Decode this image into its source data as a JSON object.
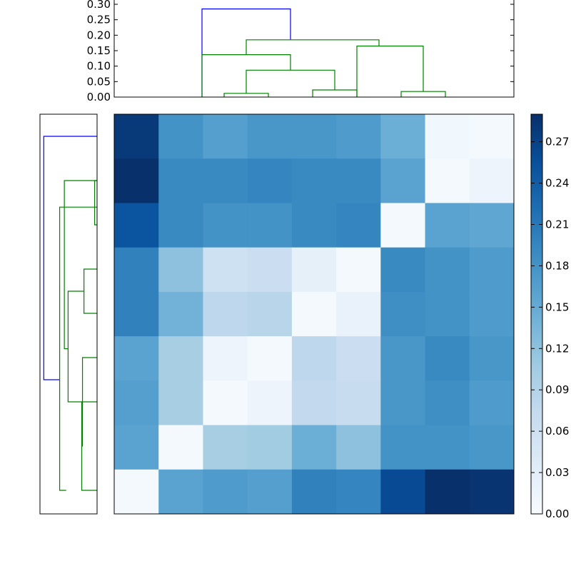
{
  "chart_data": [
    {
      "type": "dendrogram",
      "orientation": "top",
      "ylim": [
        0,
        0.3
      ],
      "yticks": [
        "0.00",
        "0.05",
        "0.10",
        "0.15",
        "0.20",
        "0.25",
        "0.30"
      ],
      "colors": {
        "root": "#0000ff",
        "cluster": "#008000"
      },
      "links": [
        {
          "xs": [
            1.5,
            1.5,
            3.5,
            3.5
          ],
          "ys": [
            0,
            0.285,
            0.285,
            0.185
          ],
          "color": "root"
        },
        {
          "xs": [
            2.5,
            2.5,
            5.5,
            5.5
          ],
          "ys": [
            0.137,
            0.185,
            0.185,
            0.165
          ],
          "color": "cluster"
        },
        {
          "xs": [
            5,
            5,
            6.5,
            6.5
          ],
          "ys": [
            0,
            0.165,
            0.165,
            0.018
          ],
          "color": "cluster"
        },
        {
          "xs": [
            1.5,
            1.5,
            3.5,
            3.5
          ],
          "ys": [
            0,
            0.137,
            0.137,
            0.087
          ],
          "color": "cluster"
        },
        {
          "xs": [
            2.5,
            2.5,
            4.5,
            4.5
          ],
          "ys": [
            0.012,
            0.087,
            0.087,
            0.023
          ],
          "color": "cluster"
        },
        {
          "xs": [
            2,
            2,
            3,
            3
          ],
          "ys": [
            0,
            0.012,
            0.012,
            0
          ],
          "color": "cluster"
        },
        {
          "xs": [
            4,
            4,
            5,
            5
          ],
          "ys": [
            0,
            0.023,
            0.023,
            0
          ],
          "color": "cluster"
        },
        {
          "xs": [
            6,
            6,
            7,
            7
          ],
          "ys": [
            0,
            0.018,
            0.018,
            0
          ],
          "color": "cluster"
        }
      ]
    },
    {
      "type": "dendrogram",
      "orientation": "left",
      "colors": {
        "root": "#0000ff",
        "cluster": "#008000"
      },
      "links": [
        {
          "leaves": [
            0,
            0,
            5.5,
            5.5
          ],
          "heights": [
            0,
            0.285,
            0.285,
            0.2
          ],
          "color": "root"
        },
        {
          "leaves": [
            1,
            1,
            4.8,
            4.8
          ],
          "heights": [
            0,
            0.175,
            0.175,
            0.155
          ],
          "color": "cluster"
        },
        {
          "leaves": [
            1.6,
            1.6,
            8,
            8
          ],
          "heights": [
            0,
            0.2,
            0.2,
            0.165
          ],
          "color": "cluster"
        },
        {
          "leaves": [
            3.5,
            3.5,
            6,
            6
          ],
          "heights": [
            0.07,
            0.155,
            0.155,
            0.078
          ],
          "color": "cluster"
        },
        {
          "leaves": [
            3,
            3,
            4,
            4
          ],
          "heights": [
            0,
            0.07,
            0.07,
            0
          ],
          "color": "cluster"
        },
        {
          "leaves": [
            5,
            5,
            7,
            7
          ],
          "heights": [
            0,
            0.078,
            0.078,
            0.082
          ],
          "color": "cluster"
        },
        {
          "leaves": [
            6,
            6,
            8,
            8
          ],
          "heights": [
            0,
            0.082,
            0.082,
            0
          ],
          "color": "cluster"
        },
        {
          "leaves": [
            1,
            1,
            2,
            2
          ],
          "heights": [
            0,
            0.013,
            0.013,
            0
          ],
          "color": "cluster"
        }
      ]
    },
    {
      "type": "heatmap",
      "colormap": "Blues",
      "vmin": 0,
      "vmax": 0.29,
      "rows": 9,
      "cols": 9,
      "values": [
        [
          0.28,
          0.18,
          0.165,
          0.175,
          0.175,
          0.17,
          0.145,
          0.01,
          0.005
        ],
        [
          0.29,
          0.19,
          0.19,
          0.195,
          0.19,
          0.19,
          0.16,
          0.005,
          0.015
        ],
        [
          0.25,
          0.19,
          0.18,
          0.18,
          0.19,
          0.195,
          0.005,
          0.16,
          0.155
        ],
        [
          0.2,
          0.12,
          0.06,
          0.065,
          0.025,
          0.005,
          0.19,
          0.18,
          0.17
        ],
        [
          0.2,
          0.14,
          0.08,
          0.085,
          0.005,
          0.02,
          0.185,
          0.18,
          0.17
        ],
        [
          0.16,
          0.1,
          0.015,
          0.005,
          0.08,
          0.065,
          0.175,
          0.19,
          0.175
        ],
        [
          0.165,
          0.1,
          0.005,
          0.015,
          0.075,
          0.07,
          0.175,
          0.185,
          0.17
        ],
        [
          0.16,
          0.005,
          0.1,
          0.105,
          0.145,
          0.12,
          0.18,
          0.18,
          0.175
        ],
        [
          0.005,
          0.16,
          0.17,
          0.165,
          0.2,
          0.195,
          0.26,
          0.29,
          0.285
        ]
      ]
    },
    {
      "type": "colorbar",
      "colormap": "Blues",
      "range": [
        0,
        0.29
      ],
      "ticks": [
        "0.00",
        "0.03",
        "0.06",
        "0.09",
        "0.12",
        "0.15",
        "0.18",
        "0.21",
        "0.24",
        "0.27"
      ]
    }
  ]
}
